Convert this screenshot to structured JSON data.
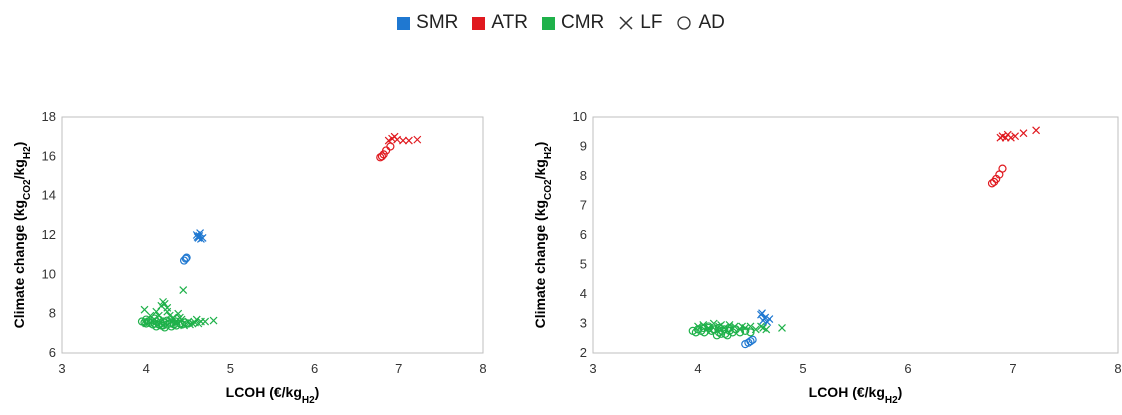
{
  "legend": {
    "items": [
      {
        "label": "SMR",
        "kind": "swatch",
        "color": "#1f78d1"
      },
      {
        "label": "ATR",
        "kind": "swatch",
        "color": "#e0191f"
      },
      {
        "label": "CMR",
        "kind": "swatch",
        "color": "#1fb14a"
      },
      {
        "label": "LF",
        "kind": "cross",
        "color": "#333333"
      },
      {
        "label": "AD",
        "kind": "circle",
        "color": "#333333"
      }
    ]
  },
  "colors": {
    "SMR": "#1f78d1",
    "ATR": "#e0191f",
    "CMR": "#1fb14a",
    "frame": "#bfbfbf"
  },
  "chart_data": [
    {
      "type": "scatter",
      "title": "",
      "xlabel": "LCOH (€/kg",
      "xlabel_sub": "H2",
      "xlabel_end": ")",
      "ylabel": "Climate change (kg",
      "ylabel_sub1": "CO2",
      "ylabel_mid": "/kg",
      "ylabel_sub2": "H2",
      "ylabel_end": ")",
      "xlim": [
        3,
        8
      ],
      "ylim": [
        6,
        18
      ],
      "xticks": [
        3,
        4,
        5,
        6,
        7,
        8
      ],
      "yticks": [
        6,
        8,
        10,
        12,
        14,
        16,
        18
      ],
      "series": [
        {
          "name": "SMR",
          "marker": "cross",
          "x": [
            4.6,
            4.62,
            4.63,
            4.65,
            4.61,
            4.67,
            4.64
          ],
          "y": [
            12.0,
            11.85,
            11.95,
            11.8,
            11.9,
            11.85,
            12.1
          ]
        },
        {
          "name": "SMR",
          "marker": "circle",
          "x": [
            4.45,
            4.47,
            4.48
          ],
          "y": [
            10.7,
            10.8,
            10.85
          ]
        },
        {
          "name": "ATR",
          "marker": "cross",
          "x": [
            6.88,
            6.92,
            6.95,
            6.98,
            7.05,
            7.12,
            7.22
          ],
          "y": [
            16.8,
            16.9,
            17.0,
            16.85,
            16.8,
            16.8,
            16.85
          ]
        },
        {
          "name": "ATR",
          "marker": "circle",
          "x": [
            6.78,
            6.8,
            6.82,
            6.85,
            6.9
          ],
          "y": [
            15.95,
            16.0,
            16.1,
            16.3,
            16.5
          ]
        },
        {
          "name": "CMR",
          "marker": "cross",
          "x": [
            3.98,
            4.05,
            4.12,
            4.18,
            4.2,
            4.22,
            4.25,
            4.28,
            4.3,
            4.32,
            4.35,
            4.38,
            4.42,
            4.45,
            4.5,
            4.55,
            4.6,
            4.62,
            4.65,
            4.7,
            4.8,
            4.44,
            4.0,
            4.1,
            4.15,
            4.25,
            4.35,
            4.4,
            4.52,
            4.58
          ],
          "y": [
            8.2,
            7.9,
            8.1,
            8.4,
            8.6,
            8.5,
            8.3,
            7.9,
            7.6,
            7.8,
            7.5,
            8.0,
            7.7,
            7.4,
            7.6,
            7.5,
            7.7,
            7.5,
            7.6,
            7.6,
            7.65,
            9.2,
            7.5,
            7.7,
            7.9,
            8.1,
            7.6,
            7.8,
            7.45,
            7.55
          ]
        },
        {
          "name": "CMR",
          "marker": "circle",
          "x": [
            3.95,
            3.98,
            4.0,
            4.02,
            4.05,
            4.08,
            4.1,
            4.12,
            4.15,
            4.18,
            4.2,
            4.22,
            4.25,
            4.28,
            4.3,
            4.33,
            4.36,
            4.4,
            4.43,
            4.46,
            4.5,
            4.0,
            4.05,
            4.1,
            4.15,
            4.2,
            4.25,
            4.3,
            4.35,
            4.12,
            4.18,
            4.22
          ],
          "y": [
            7.6,
            7.55,
            7.5,
            7.6,
            7.55,
            7.45,
            7.5,
            7.6,
            7.45,
            7.5,
            7.4,
            7.55,
            7.45,
            7.5,
            7.35,
            7.45,
            7.4,
            7.5,
            7.45,
            7.55,
            7.5,
            7.7,
            7.65,
            7.75,
            7.7,
            7.6,
            7.65,
            7.55,
            7.6,
            7.35,
            7.4,
            7.3
          ]
        }
      ]
    },
    {
      "type": "scatter",
      "title": "",
      "xlabel": "LCOH (€/kg",
      "xlabel_sub": "H2",
      "xlabel_end": ")",
      "ylabel": "Climate change (kg",
      "ylabel_sub1": "CO2",
      "ylabel_mid": "/kg",
      "ylabel_sub2": "H2",
      "ylabel_end": ")",
      "xlim": [
        3,
        8
      ],
      "ylim": [
        2,
        10
      ],
      "xticks": [
        3,
        4,
        5,
        6,
        7,
        8
      ],
      "yticks": [
        2,
        3,
        4,
        5,
        6,
        7,
        8,
        9,
        10
      ],
      "series": [
        {
          "name": "SMR",
          "marker": "cross",
          "x": [
            4.6,
            4.62,
            4.64,
            4.66,
            4.68,
            4.61
          ],
          "y": [
            3.3,
            3.1,
            3.2,
            3.05,
            3.15,
            3.35
          ]
        },
        {
          "name": "SMR",
          "marker": "circle",
          "x": [
            4.45,
            4.48,
            4.5,
            4.52
          ],
          "y": [
            2.3,
            2.35,
            2.4,
            2.45
          ]
        },
        {
          "name": "ATR",
          "marker": "cross",
          "x": [
            6.88,
            6.9,
            6.93,
            6.95,
            6.98,
            7.02,
            7.1,
            7.22
          ],
          "y": [
            9.3,
            9.35,
            9.3,
            9.4,
            9.3,
            9.35,
            9.45,
            9.55
          ]
        },
        {
          "name": "ATR",
          "marker": "circle",
          "x": [
            6.8,
            6.82,
            6.84,
            6.87,
            6.9
          ],
          "y": [
            7.75,
            7.8,
            7.9,
            8.05,
            8.25
          ]
        },
        {
          "name": "CMR",
          "marker": "cross",
          "x": [
            4.0,
            4.05,
            4.1,
            4.15,
            4.2,
            4.25,
            4.3,
            4.35,
            4.4,
            4.45,
            4.5,
            4.55,
            4.6,
            4.62,
            4.65,
            4.8,
            4.12,
            4.22,
            4.32,
            4.42
          ],
          "y": [
            2.9,
            2.95,
            2.85,
            3.0,
            2.9,
            2.85,
            2.95,
            2.9,
            2.8,
            2.85,
            2.9,
            2.8,
            2.9,
            2.85,
            2.8,
            2.85,
            2.75,
            2.95,
            2.8,
            2.9
          ]
        },
        {
          "name": "CMR",
          "marker": "circle",
          "x": [
            3.95,
            3.98,
            4.0,
            4.03,
            4.06,
            4.1,
            4.13,
            4.16,
            4.2,
            4.23,
            4.26,
            4.3,
            4.33,
            4.36,
            4.4,
            4.45,
            4.5,
            4.05,
            4.1,
            4.15,
            4.2,
            4.25,
            4.3,
            4.18,
            4.22,
            4.28
          ],
          "y": [
            2.75,
            2.7,
            2.8,
            2.75,
            2.7,
            2.85,
            2.75,
            2.8,
            2.7,
            2.75,
            2.65,
            2.75,
            2.7,
            2.8,
            2.7,
            2.75,
            2.7,
            2.85,
            2.9,
            2.8,
            2.85,
            2.8,
            2.85,
            2.6,
            2.65,
            2.6
          ]
        }
      ]
    }
  ]
}
